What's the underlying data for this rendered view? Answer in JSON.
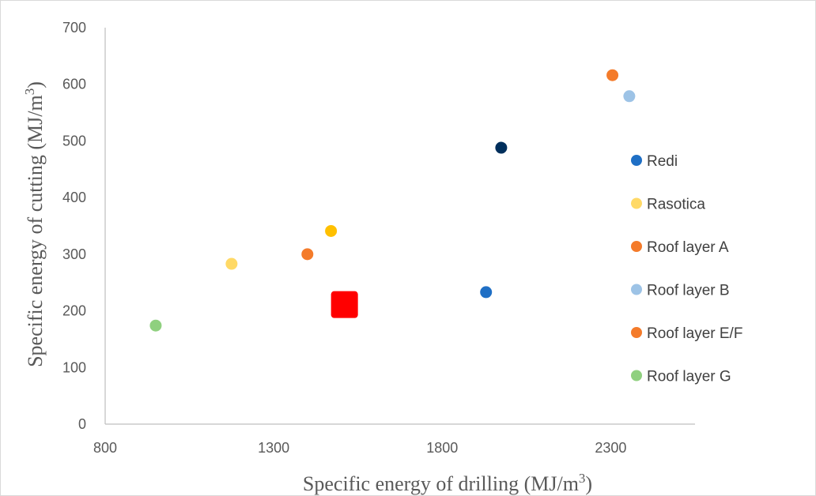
{
  "chart_data": {
    "type": "scatter",
    "xlabel": {
      "main": "Specific energy of drilling (MJ/m",
      "sup": "3",
      "tail": ")"
    },
    "ylabel": {
      "main": "Specific energy of cutting (MJ/m",
      "sup": "3",
      "tail": ")"
    },
    "xlim": [
      800,
      2550
    ],
    "ylim": [
      0,
      700
    ],
    "x_ticks": [
      800,
      1300,
      1800,
      2300
    ],
    "y_ticks": [
      0,
      100,
      200,
      300,
      400,
      500,
      600,
      700
    ],
    "grid": false,
    "legend_position": "right",
    "series": [
      {
        "name": "Redi",
        "color": "#1f6fc5",
        "points": [
          [
            1930,
            233
          ]
        ]
      },
      {
        "name": "Rasotica",
        "color": "#ffd966",
        "points": [
          [
            1175,
            283
          ]
        ]
      },
      {
        "name": "Roof layer A",
        "color": "#f47b2a",
        "points": [
          [
            1400,
            300
          ]
        ]
      },
      {
        "name": "Roof layer B",
        "color": "#9dc3e6",
        "points": [
          [
            2355,
            579
          ]
        ]
      },
      {
        "name": "Roof layer E/F",
        "color": "#f47b2a",
        "points": [
          [
            2305,
            616
          ]
        ]
      },
      {
        "name": "Roof layer G",
        "color": "#8fd07f",
        "points": [
          [
            950,
            174
          ]
        ]
      }
    ],
    "extra_points": [
      {
        "color": "#002f5c",
        "x": 1975,
        "y": 488,
        "marker": "circle"
      },
      {
        "color": "#ffc000",
        "x": 1470,
        "y": 341,
        "marker": "circle"
      },
      {
        "color": "#ff0000",
        "x": 1510,
        "y": 211,
        "marker": "square"
      }
    ]
  }
}
